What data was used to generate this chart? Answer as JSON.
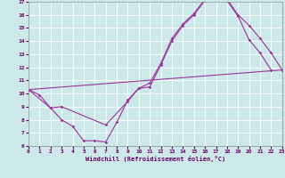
{
  "xlabel": "Windchill (Refroidissement éolien,°C)",
  "bg_color": "#cce8e8",
  "line_color": "#993399",
  "grid_color": "#ffffff",
  "xlim": [
    0,
    23
  ],
  "ylim": [
    6,
    17
  ],
  "xticks": [
    0,
    1,
    2,
    3,
    4,
    5,
    6,
    7,
    8,
    9,
    10,
    11,
    12,
    13,
    14,
    15,
    16,
    17,
    18,
    19,
    20,
    21,
    22,
    23
  ],
  "yticks": [
    6,
    7,
    8,
    9,
    10,
    11,
    12,
    13,
    14,
    15,
    16,
    17
  ],
  "line1_x": [
    0,
    1,
    2,
    3,
    4,
    5,
    6,
    7,
    8,
    9,
    10,
    11,
    12,
    13,
    14,
    15,
    16,
    17,
    18,
    19,
    20,
    21,
    22
  ],
  "line1_y": [
    10.3,
    9.9,
    8.9,
    8.0,
    7.5,
    6.4,
    6.4,
    6.3,
    7.8,
    9.5,
    10.4,
    10.5,
    12.2,
    14.0,
    15.2,
    16.0,
    17.1,
    17.2,
    17.1,
    15.9,
    14.1,
    13.1,
    11.8
  ],
  "line2_x": [
    0,
    2,
    3,
    7,
    9,
    10,
    11,
    12,
    13,
    14,
    15,
    16,
    17,
    18,
    19,
    20,
    21,
    22,
    23
  ],
  "line2_y": [
    10.3,
    8.9,
    9.0,
    7.6,
    9.4,
    10.4,
    10.8,
    12.3,
    14.2,
    15.3,
    16.1,
    17.2,
    17.3,
    17.2,
    16.0,
    15.2,
    14.2,
    13.1,
    11.8
  ],
  "line3_x": [
    0,
    23
  ],
  "line3_y": [
    10.3,
    11.8
  ]
}
